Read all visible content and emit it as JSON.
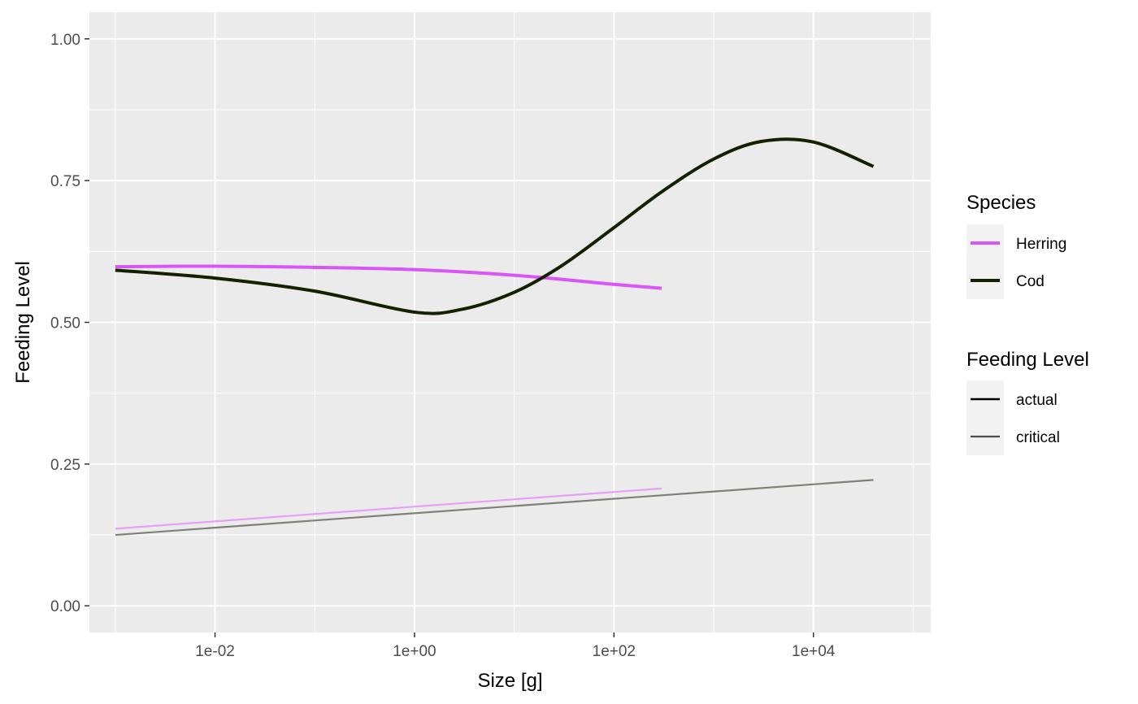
{
  "chart_data": {
    "type": "line",
    "x_scale": "log10",
    "xlabel": "Size [g]",
    "ylabel": "Feeding Level",
    "xlim": [
      0.00055,
      150000
    ],
    "ylim": [
      -0.047,
      1.047
    ],
    "x_ticks": [
      {
        "value": 0.01,
        "label": "1e-02"
      },
      {
        "value": 1,
        "label": "1e+00"
      },
      {
        "value": 100,
        "label": "1e+02"
      },
      {
        "value": 10000,
        "label": "1e+04"
      }
    ],
    "y_ticks": [
      {
        "value": 0,
        "label": "0.00"
      },
      {
        "value": 0.25,
        "label": "0.25"
      },
      {
        "value": 0.5,
        "label": "0.50"
      },
      {
        "value": 0.75,
        "label": "0.75"
      },
      {
        "value": 1,
        "label": "1.00"
      }
    ],
    "grid": true,
    "legend_position": "right",
    "legends": [
      {
        "title": "Species",
        "entries": [
          {
            "label": "Herring",
            "color": "#d955f5"
          },
          {
            "label": "Cod",
            "color": "#142100"
          }
        ]
      },
      {
        "title": "Feeding Level",
        "entries": [
          {
            "label": "actual",
            "color": "#000000"
          },
          {
            "label": "critical",
            "color": "#4d4d4d"
          }
        ]
      }
    ],
    "series": [
      {
        "species": "Herring",
        "feeding_level": "actual",
        "color": "#d955f5",
        "x": [
          0.001,
          0.01,
          0.1,
          1,
          10,
          100,
          300
        ],
        "y": [
          0.598,
          0.599,
          0.597,
          0.593,
          0.583,
          0.567,
          0.56
        ]
      },
      {
        "species": "Cod",
        "feeding_level": "actual",
        "color": "#142100",
        "x": [
          0.001,
          0.01,
          0.1,
          1,
          3,
          10,
          30,
          100,
          300,
          1000,
          3000,
          10000,
          40000
        ],
        "y": [
          0.592,
          0.578,
          0.555,
          0.518,
          0.523,
          0.553,
          0.6,
          0.667,
          0.73,
          0.788,
          0.819,
          0.818,
          0.775
        ]
      },
      {
        "species": "Herring",
        "feeding_level": "critical",
        "color": "#e6a0f8",
        "x": [
          0.001,
          300
        ],
        "y": [
          0.136,
          0.207
        ]
      },
      {
        "species": "Cod",
        "feeding_level": "critical",
        "color": "#808078",
        "x": [
          0.001,
          40000
        ],
        "y": [
          0.125,
          0.222
        ]
      }
    ]
  }
}
